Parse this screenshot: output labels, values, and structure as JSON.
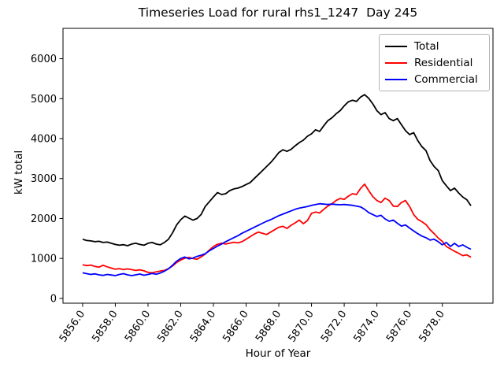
{
  "chart_data": {
    "type": "line",
    "title": "Timeseries Load for rural rhs1_1247  Day 245",
    "xlabel": "Hour of Year",
    "ylabel": "kW total",
    "grid": false,
    "legend_position": "upper right",
    "background": "#ffffff",
    "spine_color": "#000000",
    "xlim": [
      5854.8,
      5881.1
    ],
    "ylim": [
      -120,
      6760
    ],
    "xticks": {
      "values": [
        5856,
        5858,
        5860,
        5862,
        5864,
        5866,
        5868,
        5870,
        5872,
        5874,
        5876,
        5878
      ],
      "labels": [
        "5856.0",
        "5858.0",
        "5860.0",
        "5862.0",
        "5864.0",
        "5866.0",
        "5868.0",
        "5870.0",
        "5872.0",
        "5874.0",
        "5876.0",
        "5878.0"
      ]
    },
    "yticks": {
      "values": [
        0,
        1000,
        2000,
        3000,
        4000,
        5000,
        6000
      ],
      "labels": [
        "0",
        "1000",
        "2000",
        "3000",
        "4000",
        "5000",
        "6000"
      ]
    },
    "x": [
      5856.0,
      5856.25,
      5856.5,
      5856.75,
      5857.0,
      5857.25,
      5857.5,
      5857.75,
      5858.0,
      5858.25,
      5858.5,
      5858.75,
      5859.0,
      5859.25,
      5859.5,
      5859.75,
      5860.0,
      5860.25,
      5860.5,
      5860.75,
      5861.0,
      5861.25,
      5861.5,
      5861.75,
      5862.0,
      5862.25,
      5862.5,
      5862.75,
      5863.0,
      5863.25,
      5863.5,
      5863.75,
      5864.0,
      5864.25,
      5864.5,
      5864.75,
      5865.0,
      5865.25,
      5865.5,
      5865.75,
      5866.0,
      5866.25,
      5866.5,
      5866.75,
      5867.0,
      5867.25,
      5867.5,
      5867.75,
      5868.0,
      5868.25,
      5868.5,
      5868.75,
      5869.0,
      5869.25,
      5869.5,
      5869.75,
      5870.0,
      5870.25,
      5870.5,
      5870.75,
      5871.0,
      5871.25,
      5871.5,
      5871.75,
      5872.0,
      5872.25,
      5872.5,
      5872.75,
      5873.0,
      5873.25,
      5873.5,
      5873.75,
      5874.0,
      5874.25,
      5874.5,
      5874.75,
      5875.0,
      5875.25,
      5875.5,
      5875.75,
      5876.0,
      5876.25,
      5876.5,
      5876.75,
      5877.0,
      5877.25,
      5877.5,
      5877.75,
      5878.0,
      5878.25,
      5878.5,
      5878.75,
      5879.0,
      5879.25,
      5879.5,
      5879.75
    ],
    "series": [
      {
        "name": "Total",
        "color": "#000000",
        "values": [
          1480,
          1450,
          1440,
          1420,
          1430,
          1400,
          1410,
          1380,
          1350,
          1330,
          1345,
          1320,
          1360,
          1380,
          1350,
          1330,
          1380,
          1400,
          1360,
          1340,
          1400,
          1480,
          1640,
          1840,
          1970,
          2060,
          2010,
          1960,
          2000,
          2100,
          2300,
          2420,
          2540,
          2650,
          2600,
          2620,
          2700,
          2740,
          2760,
          2800,
          2850,
          2900,
          3000,
          3100,
          3200,
          3300,
          3400,
          3520,
          3650,
          3720,
          3680,
          3730,
          3820,
          3900,
          3960,
          4060,
          4120,
          4220,
          4180,
          4320,
          4450,
          4520,
          4620,
          4700,
          4820,
          4920,
          4960,
          4930,
          5040,
          5100,
          5010,
          4870,
          4700,
          4600,
          4650,
          4500,
          4450,
          4500,
          4350,
          4200,
          4100,
          4150,
          3950,
          3800,
          3700,
          3450,
          3300,
          3200,
          2950,
          2820,
          2700,
          2760,
          2640,
          2540,
          2470,
          2320
        ]
      },
      {
        "name": "Residential",
        "color": "#ff0000",
        "values": [
          840,
          820,
          835,
          800,
          780,
          830,
          790,
          760,
          730,
          745,
          720,
          740,
          720,
          700,
          715,
          690,
          650,
          640,
          665,
          685,
          700,
          745,
          810,
          900,
          960,
          1005,
          1025,
          1000,
          980,
          1040,
          1110,
          1210,
          1300,
          1355,
          1380,
          1360,
          1385,
          1405,
          1390,
          1420,
          1480,
          1545,
          1610,
          1660,
          1630,
          1600,
          1660,
          1720,
          1780,
          1805,
          1750,
          1830,
          1890,
          1960,
          1870,
          1950,
          2130,
          2160,
          2140,
          2230,
          2310,
          2370,
          2450,
          2500,
          2480,
          2560,
          2620,
          2600,
          2750,
          2860,
          2700,
          2550,
          2450,
          2400,
          2510,
          2450,
          2310,
          2300,
          2400,
          2450,
          2300,
          2100,
          1980,
          1920,
          1850,
          1720,
          1620,
          1510,
          1430,
          1300,
          1240,
          1180,
          1130,
          1070,
          1090,
          1030
        ]
      },
      {
        "name": "Commercial",
        "color": "#0000ff",
        "values": [
          640,
          620,
          600,
          615,
          590,
          575,
          600,
          585,
          570,
          600,
          620,
          590,
          570,
          590,
          610,
          580,
          600,
          625,
          605,
          635,
          680,
          740,
          830,
          930,
          1000,
          1035,
          990,
          1010,
          1050,
          1080,
          1120,
          1190,
          1250,
          1310,
          1360,
          1420,
          1470,
          1520,
          1570,
          1630,
          1680,
          1730,
          1780,
          1830,
          1880,
          1930,
          1970,
          2020,
          2070,
          2110,
          2150,
          2190,
          2230,
          2260,
          2280,
          2300,
          2330,
          2350,
          2370,
          2360,
          2350,
          2360,
          2350,
          2345,
          2350,
          2340,
          2330,
          2310,
          2290,
          2230,
          2150,
          2100,
          2050,
          2080,
          1990,
          1930,
          1960,
          1880,
          1810,
          1840,
          1760,
          1690,
          1620,
          1560,
          1520,
          1460,
          1480,
          1420,
          1340,
          1400,
          1300,
          1380,
          1300,
          1340,
          1280,
          1230
        ]
      }
    ]
  }
}
